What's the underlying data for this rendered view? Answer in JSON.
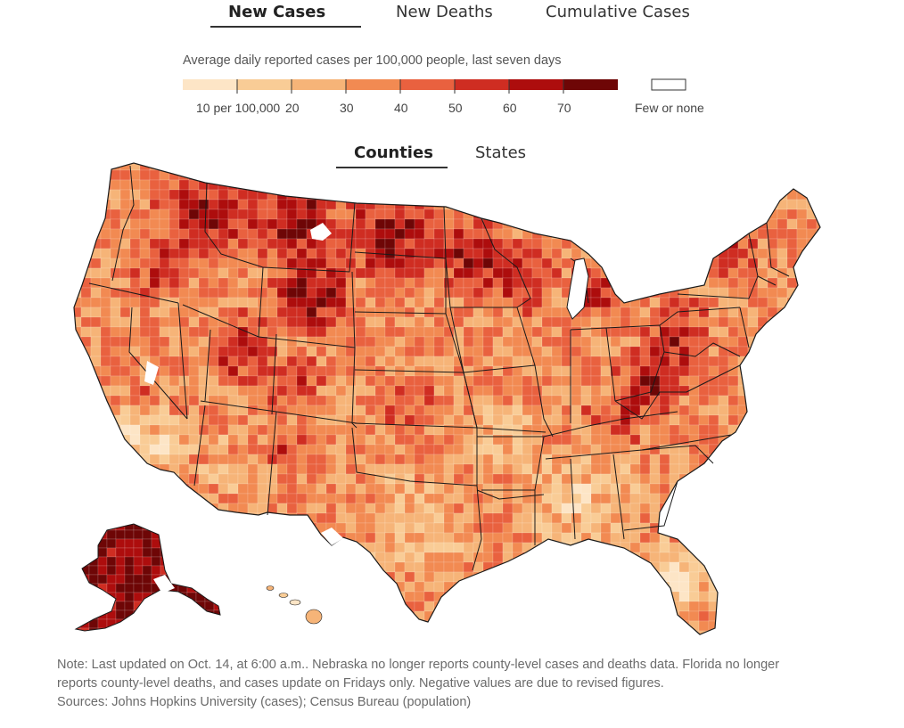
{
  "metric_tabs": [
    {
      "label": "New Cases",
      "active": true
    },
    {
      "label": "New Deaths",
      "active": false
    },
    {
      "label": "Cumulative Cases",
      "active": false
    }
  ],
  "legend": {
    "title": "Average daily reported cases per 100,000 people, last seven days",
    "bins": [
      {
        "color": "#fde5c6"
      },
      {
        "color": "#f9cc96"
      },
      {
        "color": "#f6b478"
      },
      {
        "color": "#f28a52"
      },
      {
        "color": "#e9613f"
      },
      {
        "color": "#cf2d22"
      },
      {
        "color": "#ad0d0d"
      },
      {
        "color": "#6e0606"
      }
    ],
    "thresholds": [
      10,
      20,
      30,
      40,
      50,
      60,
      70
    ],
    "tick_labels": [
      "10 per 100,000",
      "20",
      "30",
      "40",
      "50",
      "60",
      "70"
    ],
    "none_color": "#ffffff",
    "none_label": "Few or none"
  },
  "geo_tabs": [
    {
      "label": "Counties",
      "active": true
    },
    {
      "label": "States",
      "active": false
    }
  ],
  "map": {
    "state_border_color": "#1a1a1a"
  },
  "note": {
    "line1": "Note: Last updated on Oct. 14, at 6:00 a.m.. Nebraska no longer reports county-level cases and deaths data. Florida no longer",
    "line2": "reports county-level deaths, and cases update on Fridays only. Negative values are due to revised figures.",
    "line3": "Sources: Johns Hopkins University (cases); Census Bureau (population)"
  }
}
